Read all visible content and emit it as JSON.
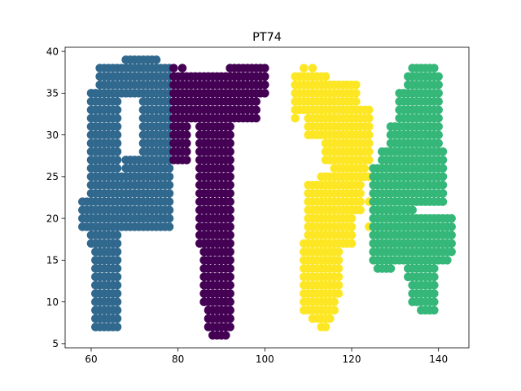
{
  "chart_data": {
    "type": "scatter",
    "title": "PT74",
    "xlabel": "",
    "ylabel": "",
    "xlim": [
      54,
      147
    ],
    "ylim": [
      4.5,
      40.5
    ],
    "xticks": [
      60,
      80,
      100,
      120,
      140
    ],
    "yticks": [
      5,
      10,
      15,
      20,
      25,
      30,
      35,
      40
    ],
    "grid": false,
    "legend": "none",
    "marker_radius": 1.0,
    "series": [
      {
        "color": "#31688e",
        "shapes": [
          {
            "x": [
              58,
              78
            ],
            "y": [
              19,
              22
            ]
          },
          {
            "x": [
              60,
              78
            ],
            "y": [
              22,
              25
            ]
          },
          {
            "x": [
              60,
              66
            ],
            "y": [
              17,
              19
            ]
          },
          {
            "x": [
              61,
              66
            ],
            "y": [
              8,
              17
            ]
          },
          {
            "x": [
              61,
              66
            ],
            "y": [
              7,
              8
            ]
          },
          {
            "x": [
              60,
              66
            ],
            "y": [
              25,
              35
            ]
          },
          {
            "x": [
              62,
              78
            ],
            "y": [
              35,
              38
            ]
          },
          {
            "x": [
              68,
              75
            ],
            "y": [
              38,
              39
            ]
          },
          {
            "x": [
              72,
              78
            ],
            "y": [
              25,
              35
            ]
          },
          {
            "x": [
              68,
              72
            ],
            "y": [
              25,
              27
            ]
          }
        ],
        "points": [
          {
            "x": 62,
            "y": 36
          },
          {
            "x": 70,
            "y": 39
          },
          {
            "x": 74,
            "y": 39
          },
          {
            "x": 77,
            "y": 19
          },
          {
            "x": 76,
            "y": 19
          },
          {
            "x": 66,
            "y": 15
          },
          {
            "x": 66,
            "y": 11
          },
          {
            "x": 64,
            "y": 7
          },
          {
            "x": 62,
            "y": 7
          },
          {
            "x": 58,
            "y": 22
          }
        ]
      },
      {
        "color": "#440154",
        "shapes": [
          {
            "x": [
              79,
              98
            ],
            "y": [
              32,
              35
            ]
          },
          {
            "x": [
              79,
              100
            ],
            "y": [
              35,
              37
            ]
          },
          {
            "x": [
              92,
              100
            ],
            "y": [
              37,
              38
            ]
          },
          {
            "x": [
              79,
              82
            ],
            "y": [
              27,
              32
            ]
          },
          {
            "x": [
              85,
              92
            ],
            "y": [
              17,
              32
            ]
          },
          {
            "x": [
              86,
              92
            ],
            "y": [
              10,
              17
            ]
          },
          {
            "x": [
              87,
              92
            ],
            "y": [
              7,
              10
            ]
          },
          {
            "x": [
              88,
              91
            ],
            "y": [
              6,
              7
            ]
          }
        ],
        "points": [
          {
            "x": 100,
            "y": 38
          },
          {
            "x": 79,
            "y": 38
          },
          {
            "x": 81,
            "y": 38
          },
          {
            "x": 79,
            "y": 30
          },
          {
            "x": 82,
            "y": 36
          }
        ]
      },
      {
        "color": "#fde725",
        "shapes": [
          {
            "x": [
              107,
              114
            ],
            "y": [
              36,
              37
            ]
          },
          {
            "x": [
              107,
              121
            ],
            "y": [
              33,
              36
            ]
          },
          {
            "x": [
              110,
              124
            ],
            "y": [
              30,
              33
            ]
          },
          {
            "x": [
              114,
              124
            ],
            "y": [
              27,
              30
            ]
          },
          {
            "x": [
              116,
              123
            ],
            "y": [
              25,
              27
            ]
          },
          {
            "x": [
              113,
              122
            ],
            "y": [
              24,
              25
            ]
          },
          {
            "x": [
              110,
              122
            ],
            "y": [
              21,
              24
            ]
          },
          {
            "x": [
              110,
              120
            ],
            "y": [
              17,
              21
            ]
          },
          {
            "x": [
              109,
              117
            ],
            "y": [
              11,
              17
            ]
          },
          {
            "x": [
              109,
              116
            ],
            "y": [
              9,
              11
            ]
          },
          {
            "x": [
              111,
              115
            ],
            "y": [
              8,
              9
            ]
          },
          {
            "x": [
              113,
              114
            ],
            "y": [
              7,
              8
            ]
          }
        ],
        "points": [
          {
            "x": 109,
            "y": 38
          },
          {
            "x": 111,
            "y": 38
          },
          {
            "x": 121,
            "y": 36
          },
          {
            "x": 107,
            "y": 32
          },
          {
            "x": 110,
            "y": 31
          },
          {
            "x": 124,
            "y": 25
          },
          {
            "x": 124,
            "y": 22
          },
          {
            "x": 124,
            "y": 19
          }
        ]
      },
      {
        "color": "#35b779",
        "shapes": [
          {
            "x": [
              134,
              139
            ],
            "y": [
              37,
              38
            ]
          },
          {
            "x": [
              133,
              140
            ],
            "y": [
              35,
              37
            ]
          },
          {
            "x": [
              131,
              140
            ],
            "y": [
              31,
              35
            ]
          },
          {
            "x": [
              129,
              140
            ],
            "y": [
              28,
              31
            ]
          },
          {
            "x": [
              127,
              141
            ],
            "y": [
              26,
              28
            ]
          },
          {
            "x": [
              125,
              141
            ],
            "y": [
              22,
              26
            ]
          },
          {
            "x": [
              125,
              134
            ],
            "y": [
              20,
              22
            ]
          },
          {
            "x": [
              125,
              143
            ],
            "y": [
              16,
              20
            ]
          },
          {
            "x": [
              125,
              142
            ],
            "y": [
              15,
              16
            ]
          },
          {
            "x": [
              126,
              129
            ],
            "y": [
              14,
              15
            ]
          },
          {
            "x": [
              133,
              139
            ],
            "y": [
              13,
              15
            ]
          },
          {
            "x": [
              134,
              139
            ],
            "y": [
              10,
              13
            ]
          },
          {
            "x": [
              136,
              139
            ],
            "y": [
              9,
              10
            ]
          }
        ],
        "points": [
          {
            "x": 136,
            "y": 38
          },
          {
            "x": 138,
            "y": 38
          },
          {
            "x": 141,
            "y": 15
          },
          {
            "x": 130,
            "y": 15
          },
          {
            "x": 132,
            "y": 15
          },
          {
            "x": 126,
            "y": 24
          },
          {
            "x": 128,
            "y": 28
          },
          {
            "x": 132,
            "y": 29
          }
        ]
      }
    ]
  }
}
